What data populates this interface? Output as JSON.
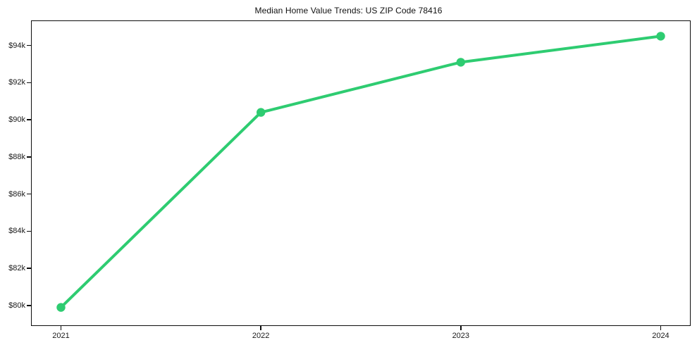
{
  "chart_data": {
    "type": "line",
    "title": "Median Home Value Trends: US ZIP Code 78416",
    "x": [
      2021,
      2022,
      2023,
      2024
    ],
    "x_tick_labels": [
      "2021",
      "2022",
      "2023",
      "2024"
    ],
    "series": [
      {
        "name": "Median Home Value",
        "values": [
          79900,
          90400,
          93100,
          94500
        ],
        "color": "#2ecc71",
        "marker": "circle"
      }
    ],
    "y_ticks": [
      80000,
      82000,
      84000,
      86000,
      88000,
      90000,
      92000,
      94000
    ],
    "y_tick_labels": [
      "$80k",
      "$82k",
      "$84k",
      "$86k",
      "$88k",
      "$90k",
      "$92k",
      "$94k"
    ],
    "xlim": [
      2020.85,
      2024.15
    ],
    "ylim": [
      78900,
      95350
    ],
    "xlabel": "",
    "ylabel": "",
    "grid": false,
    "legend": "none",
    "background_color": "#ffffff",
    "axis_color": "#0d0d0d",
    "text_color": "#1a1a1a"
  }
}
